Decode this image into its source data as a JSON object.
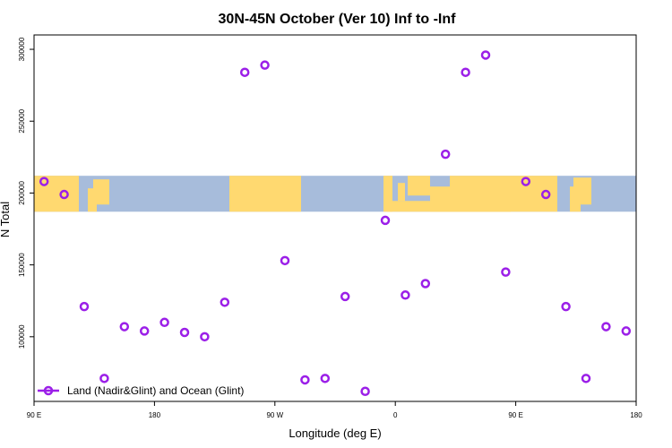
{
  "chart_data": {
    "type": "scatter",
    "title": "30N-45N October (Ver 10)   Inf to -Inf",
    "xlabel": "Longitude (deg E)",
    "ylabel": "N Total",
    "xlim": [
      90,
      450
    ],
    "ylim": [
      55000,
      310000
    ],
    "x_ticks": [
      {
        "value": 90,
        "label": "90 E"
      },
      {
        "value": 162,
        "label": "180"
      },
      {
        "value": 234,
        "label": "90 W"
      },
      {
        "value": 306,
        "label": "0"
      },
      {
        "value": 378,
        "label": "90 E"
      },
      {
        "value": 450,
        "label": "180"
      }
    ],
    "y_ticks": [
      {
        "value": 100000,
        "label": "100000"
      },
      {
        "value": 150000,
        "label": "150000"
      },
      {
        "value": 200000,
        "label": "200000"
      },
      {
        "value": 250000,
        "label": "250000"
      },
      {
        "value": 300000,
        "label": "300000"
      }
    ],
    "map_band": {
      "y_top": 212000,
      "y_bottom": 187000,
      "land_color": "#FFD970",
      "ocean_color": "#A7BCDB"
    },
    "series": [
      {
        "name": "Land (Nadir&Glint) and Ocean (Glint)",
        "color": "#9B1FE8",
        "points": [
          {
            "x": 96,
            "y": 208000
          },
          {
            "x": 108,
            "y": 199000
          },
          {
            "x": 120,
            "y": 121000
          },
          {
            "x": 132,
            "y": 71000
          },
          {
            "x": 144,
            "y": 107000
          },
          {
            "x": 156,
            "y": 104000
          },
          {
            "x": 168,
            "y": 110000
          },
          {
            "x": 180,
            "y": 103000
          },
          {
            "x": 192,
            "y": 100000
          },
          {
            "x": 204,
            "y": 124000
          },
          {
            "x": 216,
            "y": 284000
          },
          {
            "x": 228,
            "y": 289000
          },
          {
            "x": 240,
            "y": 153000
          },
          {
            "x": 252,
            "y": 70000
          },
          {
            "x": 264,
            "y": 71000
          },
          {
            "x": 276,
            "y": 128000
          },
          {
            "x": 288,
            "y": 62000
          },
          {
            "x": 300,
            "y": 181000
          },
          {
            "x": 312,
            "y": 129000
          },
          {
            "x": 324,
            "y": 137000
          },
          {
            "x": 336,
            "y": 227000
          },
          {
            "x": 348,
            "y": 284000
          },
          {
            "x": 360,
            "y": 296000
          },
          {
            "x": 372,
            "y": 145000
          },
          {
            "x": 384,
            "y": 208000
          },
          {
            "x": 396,
            "y": 199000
          },
          {
            "x": 408,
            "y": 121000
          },
          {
            "x": 420,
            "y": 71000
          },
          {
            "x": 432,
            "y": 107000
          },
          {
            "x": 444,
            "y": 104000
          }
        ]
      }
    ],
    "legend_position": "bottom-left"
  }
}
